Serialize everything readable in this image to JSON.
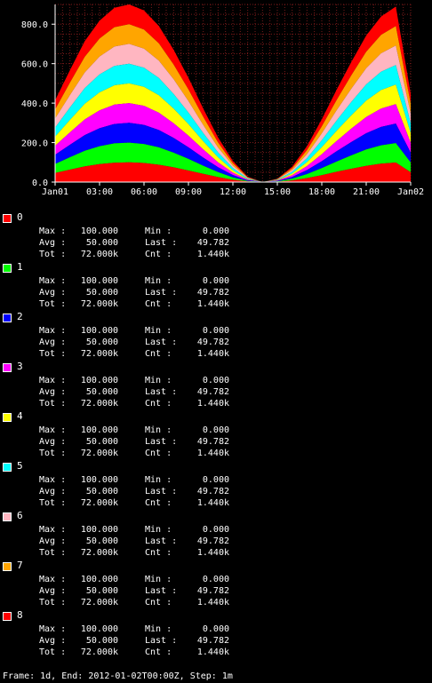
{
  "chart_data": {
    "type": "area",
    "stacked": true,
    "x_ticks": [
      "Jan01",
      "03:00",
      "06:00",
      "09:00",
      "12:00",
      "15:00",
      "18:00",
      "21:00",
      "Jan02"
    ],
    "y_ticks": [
      "0.0",
      "200.0",
      "400.0",
      "600.0",
      "800.0"
    ],
    "ylim": [
      0,
      900
    ],
    "grid": true,
    "x_hours": [
      0,
      1,
      2,
      3,
      4,
      5,
      6,
      7,
      8,
      9,
      10,
      11,
      12,
      13,
      14,
      15,
      16,
      17,
      18,
      19,
      20,
      21,
      22,
      23,
      24
    ],
    "series_values": [
      46.0,
      63.0,
      79.3,
      90.9,
      98.1,
      100.0,
      96.6,
      87.9,
      74.5,
      58.7,
      41.3,
      25.1,
      11.9,
      3.0,
      0.0,
      1.9,
      8.7,
      20.2,
      35.3,
      52.0,
      67.7,
      82.5,
      93.2,
      98.8,
      49.8
    ],
    "series": [
      {
        "name": "0",
        "color": "#ff0000"
      },
      {
        "name": "1",
        "color": "#00ff00"
      },
      {
        "name": "2",
        "color": "#0000ff"
      },
      {
        "name": "3",
        "color": "#ff00ff"
      },
      {
        "name": "4",
        "color": "#ffff00"
      },
      {
        "name": "5",
        "color": "#00ffff"
      },
      {
        "name": "6",
        "color": "#ffb6c1"
      },
      {
        "name": "7",
        "color": "#ffa500"
      },
      {
        "name": "8",
        "color": "#ff0000"
      }
    ]
  },
  "legend": {
    "labels": {
      "max": "Max :",
      "avg": "Avg :",
      "tot": "Tot :",
      "min": "Min :",
      "last": "Last :",
      "cnt": "Cnt :"
    },
    "entries": [
      {
        "name": "0",
        "color": "#ff0000",
        "max": "100.000",
        "avg": "50.000",
        "tot": "72.000k",
        "min": "0.000",
        "last": "49.782",
        "cnt": "1.440k"
      },
      {
        "name": "1",
        "color": "#00ff00",
        "max": "100.000",
        "avg": "50.000",
        "tot": "72.000k",
        "min": "0.000",
        "last": "49.782",
        "cnt": "1.440k"
      },
      {
        "name": "2",
        "color": "#0000ff",
        "max": "100.000",
        "avg": "50.000",
        "tot": "72.000k",
        "min": "0.000",
        "last": "49.782",
        "cnt": "1.440k"
      },
      {
        "name": "3",
        "color": "#ff00ff",
        "max": "100.000",
        "avg": "50.000",
        "tot": "72.000k",
        "min": "0.000",
        "last": "49.782",
        "cnt": "1.440k"
      },
      {
        "name": "4",
        "color": "#ffff00",
        "max": "100.000",
        "avg": "50.000",
        "tot": "72.000k",
        "min": "0.000",
        "last": "49.782",
        "cnt": "1.440k"
      },
      {
        "name": "5",
        "color": "#00ffff",
        "max": "100.000",
        "avg": "50.000",
        "tot": "72.000k",
        "min": "0.000",
        "last": "49.782",
        "cnt": "1.440k"
      },
      {
        "name": "6",
        "color": "#ffb6c1",
        "max": "100.000",
        "avg": "50.000",
        "tot": "72.000k",
        "min": "0.000",
        "last": "49.782",
        "cnt": "1.440k"
      },
      {
        "name": "7",
        "color": "#ffa500",
        "max": "100.000",
        "avg": "50.000",
        "tot": "72.000k",
        "min": "0.000",
        "last": "49.782",
        "cnt": "1.440k"
      },
      {
        "name": "8",
        "color": "#ff0000",
        "max": "100.000",
        "avg": "50.000",
        "tot": "72.000k",
        "min": "0.000",
        "last": "49.782",
        "cnt": "1.440k"
      }
    ]
  },
  "footer": "Frame: 1d, End: 2012-01-02T00:00Z, Step: 1m"
}
